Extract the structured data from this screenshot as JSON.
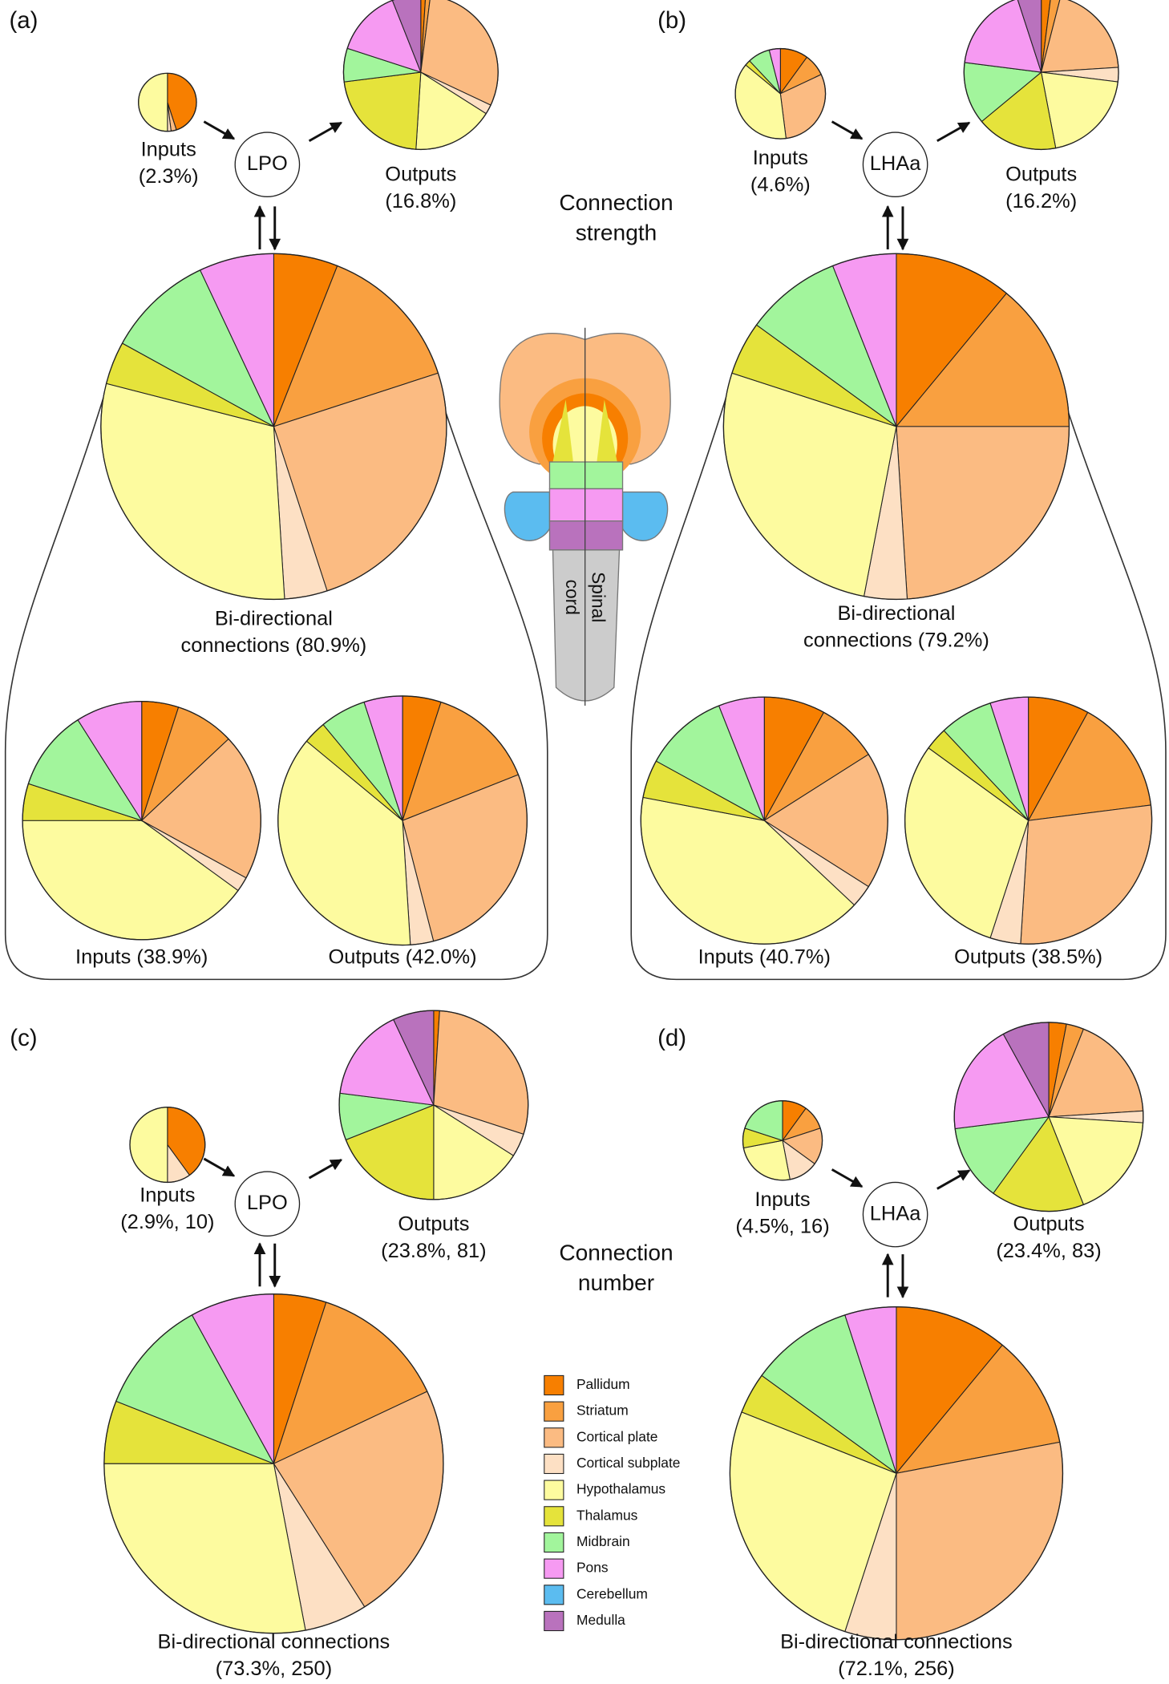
{
  "legend": {
    "names": [
      "Pallidum",
      "Striatum",
      "Cortical plate",
      "Cortical subplate",
      "Hypothalamus",
      "Thalamus",
      "Midbrain",
      "Pons",
      "Cerebellum",
      "Medulla"
    ],
    "colors": [
      "#f77f00",
      "#f9a040",
      "#fbbb82",
      "#fde0c4",
      "#fdfb9f",
      "#e5e33b",
      "#a2f59c",
      "#f69af2",
      "#5bbcf0",
      "#b972bd"
    ]
  },
  "panels": [
    {
      "label": "(a)",
      "node": "LPO"
    },
    {
      "label": "(b)",
      "node": "LHAa"
    },
    {
      "label": "(c)",
      "node": "LPO"
    },
    {
      "label": "(d)",
      "node": "LHAa"
    }
  ],
  "section_titles": [
    [
      "Connection",
      "strength"
    ],
    [
      "Connection",
      "number"
    ]
  ],
  "brain_labels": [
    "Spinal",
    "cord"
  ],
  "chart_data": [
    {
      "type": "pie",
      "title": [
        "Inputs",
        "(2.3%)"
      ],
      "values": [
        45,
        0,
        3,
        2,
        50,
        0,
        0,
        0,
        0,
        0
      ]
    },
    {
      "type": "pie",
      "title": [
        "Outputs",
        "(16.8%)"
      ],
      "values": [
        1,
        1,
        30,
        2,
        17,
        22,
        7,
        14,
        0,
        6
      ]
    },
    {
      "type": "pie",
      "title": [
        "Bi-directional",
        "connections (80.9%)"
      ],
      "values": [
        6,
        14,
        25,
        4,
        30,
        4,
        10,
        7,
        0,
        0
      ]
    },
    {
      "type": "pie",
      "title": [
        "Inputs (38.9%)"
      ],
      "values": [
        5,
        8,
        20,
        2,
        40,
        5,
        11,
        9,
        0,
        0
      ]
    },
    {
      "type": "pie",
      "title": [
        "Outputs (42.0%)"
      ],
      "values": [
        5,
        14,
        27,
        3,
        37,
        3,
        6,
        5,
        0,
        0
      ]
    },
    {
      "type": "pie",
      "title": [
        "Inputs",
        "(4.6%)"
      ],
      "values": [
        10,
        8,
        30,
        0,
        38,
        2,
        8,
        4,
        0,
        0
      ]
    },
    {
      "type": "pie",
      "title": [
        "Outputs",
        "(16.2%)"
      ],
      "values": [
        2,
        2,
        20,
        3,
        20,
        17,
        13,
        18,
        0,
        5
      ]
    },
    {
      "type": "pie",
      "title": [
        "Bi-directional",
        "connections (79.2%)"
      ],
      "values": [
        11,
        14,
        24,
        4,
        27,
        5,
        9,
        6,
        0,
        0
      ]
    },
    {
      "type": "pie",
      "title": [
        "Inputs (40.7%)"
      ],
      "values": [
        8,
        8,
        18,
        3,
        41,
        5,
        11,
        6,
        0,
        0
      ]
    },
    {
      "type": "pie",
      "title": [
        "Outputs (38.5%)"
      ],
      "values": [
        8,
        15,
        28,
        4,
        30,
        3,
        7,
        5,
        0,
        0
      ]
    },
    {
      "type": "pie",
      "title": [
        "Inputs",
        "(2.9%, 10)"
      ],
      "values": [
        40,
        0,
        0,
        10,
        50,
        0,
        0,
        0,
        0,
        0
      ]
    },
    {
      "type": "pie",
      "title": [
        "Outputs",
        "(23.8%, 81)"
      ],
      "values": [
        1,
        0,
        29,
        4,
        16,
        19,
        8,
        16,
        0,
        7
      ]
    },
    {
      "type": "pie",
      "title": [
        "Bi-directional connections",
        "(73.3%, 250)"
      ],
      "values": [
        5,
        13,
        23,
        6,
        28,
        6,
        11,
        8,
        0,
        0
      ]
    },
    {
      "type": "pie",
      "title": [
        "Inputs",
        "(4.5%, 16)"
      ],
      "values": [
        10,
        10,
        15,
        12,
        25,
        8,
        20,
        0,
        0,
        0
      ]
    },
    {
      "type": "pie",
      "title": [
        "Outputs",
        "(23.4%, 83)"
      ],
      "values": [
        3,
        3,
        18,
        2,
        18,
        16,
        13,
        19,
        0,
        8
      ]
    },
    {
      "type": "pie",
      "title": [
        "Bi-directional connections",
        "(72.1%, 256)"
      ],
      "values": [
        11,
        11,
        28,
        5,
        26,
        4,
        10,
        5,
        0,
        0
      ]
    }
  ]
}
